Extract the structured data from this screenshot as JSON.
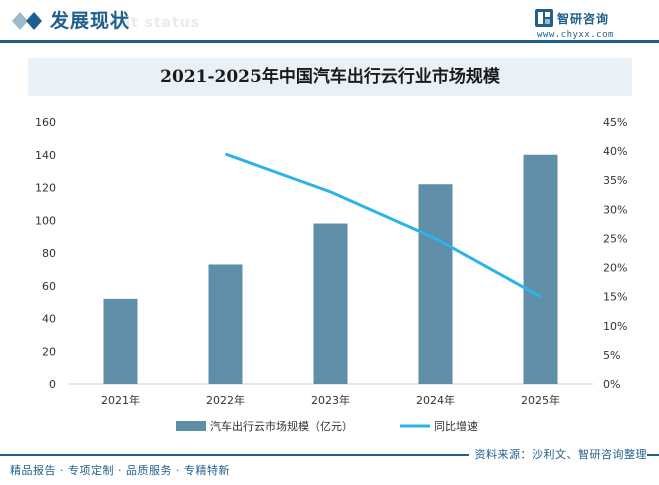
{
  "header": {
    "section_title": "发展现状",
    "section_subtitle": "ment status",
    "brand_name": "智研咨询",
    "brand_url": "www.chyxx.com",
    "accent_color": "#1f5f8b"
  },
  "footer": {
    "tagline": "精品报告 · 专项定制 · 品质服务 · 专精特新",
    "source": "资料来源：沙利文、智研咨询整理"
  },
  "chart_data": {
    "type": "bar",
    "title": "2021-2025年中国汽车出行云行业市场规模",
    "categories": [
      "2021年",
      "2022年",
      "2023年",
      "2024年",
      "2025年"
    ],
    "series": [
      {
        "name": "汽车出行云市场规模（亿元）",
        "type": "bar",
        "axis": "left",
        "color": "#5f8fa8",
        "values": [
          52,
          73,
          98,
          122,
          140
        ]
      },
      {
        "name": "同比增速",
        "type": "line",
        "axis": "right",
        "color": "#2ab4e8",
        "values": [
          null,
          39.5,
          33,
          25,
          15
        ]
      }
    ],
    "y_left": {
      "min": 0,
      "max": 160,
      "ticks": [
        "0",
        "20",
        "40",
        "60",
        "80",
        "100",
        "120",
        "140",
        "160"
      ]
    },
    "y_right": {
      "min": 0,
      "max": 45,
      "ticks": [
        "0%",
        "5%",
        "10%",
        "15%",
        "20%",
        "25%",
        "30%",
        "35%",
        "40%",
        "45%"
      ]
    },
    "grid": false,
    "legend_position": "bottom"
  }
}
